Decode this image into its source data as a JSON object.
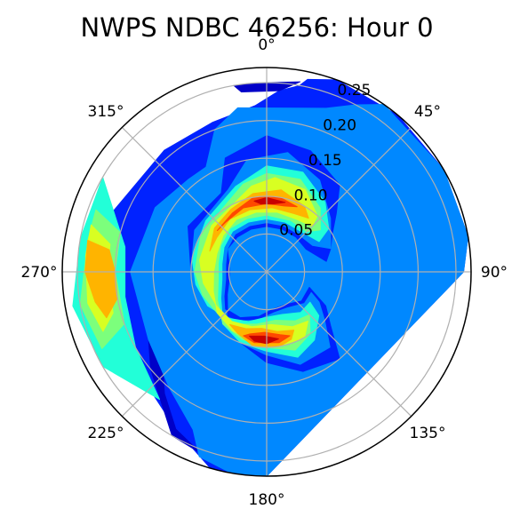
{
  "chart_data": {
    "type": "polar-contour",
    "title": "NWPS NDBC 46256: Hour 0",
    "theta_direction": "clockwise",
    "theta_zero": "top",
    "theta_ticks": [
      0,
      45,
      90,
      135,
      180,
      225,
      270,
      315
    ],
    "theta_tick_labels": [
      "0°",
      "45°",
      "90°",
      "135°",
      "180°",
      "225°",
      "270°",
      "315°"
    ],
    "r_ticks": [
      0.05,
      0.1,
      0.15,
      0.2,
      0.25
    ],
    "r_tick_labels": [
      "0.05",
      "0.10",
      "0.15",
      "0.20",
      "0.25"
    ],
    "r_tick_label_angle_deg": 22.5,
    "rlim": [
      0,
      0.27
    ],
    "grid": true,
    "colormap": "jet",
    "levels": [
      {
        "level": 1,
        "color": "#0000c8"
      },
      {
        "level": 2,
        "color": "#0022ff"
      },
      {
        "level": 3,
        "color": "#0088ff"
      },
      {
        "level": 4,
        "color": "#22ffd8"
      },
      {
        "level": 5,
        "color": "#7cff7c"
      },
      {
        "level": 6,
        "color": "#d8ff22"
      },
      {
        "level": 7,
        "color": "#ffb400"
      },
      {
        "level": 8,
        "color": "#ff4800"
      },
      {
        "level": 9,
        "color": "#c80000"
      }
    ],
    "contour_regions": [
      {
        "level": 2,
        "polar_points": [
          [
            90,
            0.26
          ],
          [
            80,
            0.27
          ],
          [
            60,
            0.27
          ],
          [
            40,
            0.27
          ],
          [
            20,
            0.27
          ],
          [
            12,
            0.26
          ],
          [
            10,
            0.25
          ],
          [
            4,
            0.24
          ],
          [
            -4,
            0.22
          ],
          [
            -20,
            0.21
          ],
          [
            -40,
            0.21
          ],
          [
            -70,
            0.22
          ],
          [
            -110,
            0.22
          ],
          [
            -150,
            0.24
          ],
          [
            -164,
            0.27
          ],
          [
            -172,
            0.27
          ],
          [
            -180,
            0.27
          ]
        ]
      },
      {
        "level": 1,
        "polar_points": [
          [
            10,
            0.255
          ],
          [
            0,
            0.25
          ],
          [
            -10,
            0.25
          ],
          [
            -8,
            0.24
          ],
          [
            4,
            0.24
          ]
        ]
      },
      {
        "level": 1,
        "polar_points": [
          [
            -140,
            0.21
          ],
          [
            -150,
            0.24
          ],
          [
            -160,
            0.255
          ],
          [
            -150,
            0.25
          ],
          [
            -130,
            0.2
          ],
          [
            -120,
            0.18
          ],
          [
            -130,
            0.18
          ]
        ]
      },
      {
        "level": 3,
        "polar_points": [
          [
            90,
            0.26
          ],
          [
            80,
            0.27
          ],
          [
            60,
            0.27
          ],
          [
            35,
            0.27
          ],
          [
            28,
            0.25
          ],
          [
            20,
            0.23
          ],
          [
            -10,
            0.22
          ],
          [
            -20,
            0.2
          ],
          [
            -30,
            0.16
          ],
          [
            -40,
            0.16
          ],
          [
            -60,
            0.17
          ],
          [
            -90,
            0.18
          ],
          [
            -120,
            0.18
          ],
          [
            -140,
            0.2
          ],
          [
            -155,
            0.23
          ],
          [
            -160,
            0.26
          ],
          [
            -170,
            0.27
          ],
          [
            -180,
            0.27
          ]
        ]
      },
      {
        "level": 4,
        "polar_points": [
          [
            -60,
            0.25
          ],
          [
            -80,
            0.25
          ],
          [
            -100,
            0.26
          ],
          [
            -120,
            0.25
          ],
          [
            -140,
            0.22
          ],
          [
            -120,
            0.2
          ],
          [
            -100,
            0.19
          ],
          [
            -80,
            0.19
          ]
        ]
      },
      {
        "level": 5,
        "polar_points": [
          [
            -70,
            0.24
          ],
          [
            -80,
            0.24
          ],
          [
            -100,
            0.25
          ],
          [
            -115,
            0.24
          ],
          [
            -110,
            0.2
          ],
          [
            -90,
            0.2
          ],
          [
            -75,
            0.2
          ]
        ]
      },
      {
        "level": 6,
        "polar_points": [
          [
            -75,
            0.24
          ],
          [
            -85,
            0.24
          ],
          [
            -100,
            0.24
          ],
          [
            -110,
            0.23
          ],
          [
            -105,
            0.21
          ],
          [
            -90,
            0.21
          ],
          [
            -80,
            0.21
          ]
        ]
      },
      {
        "level": 7,
        "polar_points": [
          [
            -80,
            0.24
          ],
          [
            -90,
            0.24
          ],
          [
            -100,
            0.23
          ],
          [
            -106,
            0.22
          ],
          [
            -100,
            0.2
          ],
          [
            -90,
            0.2
          ],
          [
            -82,
            0.21
          ]
        ]
      },
      {
        "level": 2,
        "polar_points": [
          [
            -30,
            0.12
          ],
          [
            -20,
            0.16
          ],
          [
            0,
            0.18
          ],
          [
            20,
            0.17
          ],
          [
            40,
            0.15
          ],
          [
            50,
            0.12
          ],
          [
            60,
            0.1
          ],
          [
            70,
            0.09
          ],
          [
            80,
            0.08
          ],
          [
            60,
            0.06
          ],
          [
            40,
            0.06
          ],
          [
            20,
            0.06
          ],
          [
            0,
            0.06
          ],
          [
            -20,
            0.06
          ],
          [
            -40,
            0.06
          ],
          [
            -60,
            0.06
          ],
          [
            -80,
            0.05
          ],
          [
            -100,
            0.05
          ],
          [
            -120,
            0.06
          ],
          [
            -140,
            0.08
          ],
          [
            -160,
            0.1
          ],
          [
            -180,
            0.12
          ],
          [
            160,
            0.14
          ],
          [
            140,
            0.15
          ],
          [
            130,
            0.11
          ],
          [
            120,
            0.09
          ],
          [
            110,
            0.06
          ],
          [
            130,
            0.06
          ],
          [
            150,
            0.05
          ],
          [
            170,
            0.05
          ],
          [
            -170,
            0.06
          ],
          [
            -150,
            0.07
          ],
          [
            -120,
            0.08
          ],
          [
            -100,
            0.09
          ],
          [
            -90,
            0.1
          ],
          [
            -60,
            0.12
          ]
        ]
      },
      {
        "level": 3,
        "polar_points": [
          [
            -25,
            0.12
          ],
          [
            -10,
            0.15
          ],
          [
            10,
            0.16
          ],
          [
            30,
            0.14
          ],
          [
            50,
            0.11
          ],
          [
            70,
            0.09
          ],
          [
            60,
            0.07
          ],
          [
            40,
            0.065
          ],
          [
            20,
            0.065
          ],
          [
            0,
            0.065
          ],
          [
            -20,
            0.065
          ],
          [
            -40,
            0.065
          ],
          [
            -60,
            0.06
          ],
          [
            -80,
            0.055
          ],
          [
            -100,
            0.055
          ],
          [
            -120,
            0.065
          ],
          [
            -140,
            0.085
          ],
          [
            -160,
            0.1
          ],
          [
            -180,
            0.11
          ],
          [
            160,
            0.13
          ],
          [
            140,
            0.13
          ],
          [
            130,
            0.1
          ],
          [
            120,
            0.08
          ],
          [
            115,
            0.065
          ],
          [
            130,
            0.065
          ],
          [
            150,
            0.055
          ],
          [
            170,
            0.055
          ],
          [
            -170,
            0.065
          ],
          [
            -150,
            0.075
          ],
          [
            -130,
            0.085
          ],
          [
            -110,
            0.09
          ],
          [
            -90,
            0.1
          ],
          [
            -60,
            0.11
          ]
        ]
      },
      {
        "level": 4,
        "polar_points": [
          [
            -20,
            0.12
          ],
          [
            0,
            0.14
          ],
          [
            20,
            0.14
          ],
          [
            40,
            0.12
          ],
          [
            55,
            0.1
          ],
          [
            60,
            0.08
          ],
          [
            40,
            0.07
          ],
          [
            20,
            0.07
          ],
          [
            0,
            0.07
          ],
          [
            -20,
            0.07
          ],
          [
            -40,
            0.07
          ],
          [
            -60,
            0.065
          ],
          [
            -80,
            0.06
          ],
          [
            -100,
            0.06
          ],
          [
            -120,
            0.07
          ],
          [
            -140,
            0.09
          ],
          [
            -160,
            0.1
          ],
          [
            -180,
            0.105
          ],
          [
            160,
            0.12
          ],
          [
            145,
            0.11
          ],
          [
            130,
            0.09
          ],
          [
            125,
            0.07
          ],
          [
            140,
            0.07
          ],
          [
            160,
            0.06
          ],
          [
            180,
            0.06
          ],
          [
            -160,
            0.07
          ],
          [
            -140,
            0.08
          ],
          [
            -120,
            0.09
          ],
          [
            -100,
            0.095
          ],
          [
            -80,
            0.1
          ],
          [
            -50,
            0.105
          ]
        ]
      },
      {
        "level": 5,
        "polar_points": [
          [
            -15,
            0.12
          ],
          [
            0,
            0.13
          ],
          [
            20,
            0.13
          ],
          [
            40,
            0.11
          ],
          [
            52,
            0.09
          ],
          [
            45,
            0.075
          ],
          [
            25,
            0.075
          ],
          [
            0,
            0.075
          ],
          [
            -20,
            0.075
          ],
          [
            -40,
            0.075
          ],
          [
            -60,
            0.07
          ],
          [
            -80,
            0.065
          ],
          [
            -100,
            0.065
          ],
          [
            -120,
            0.075
          ],
          [
            -140,
            0.09
          ],
          [
            -160,
            0.095
          ],
          [
            -180,
            0.1
          ],
          [
            160,
            0.11
          ],
          [
            145,
            0.1
          ],
          [
            135,
            0.08
          ],
          [
            150,
            0.075
          ],
          [
            170,
            0.065
          ],
          [
            -170,
            0.07
          ],
          [
            -150,
            0.08
          ],
          [
            -130,
            0.085
          ],
          [
            -110,
            0.09
          ],
          [
            -90,
            0.095
          ],
          [
            -60,
            0.1
          ]
        ]
      },
      {
        "level": 6,
        "polar_points": [
          [
            -10,
            0.115
          ],
          [
            5,
            0.125
          ],
          [
            25,
            0.12
          ],
          [
            42,
            0.1
          ],
          [
            45,
            0.085
          ],
          [
            30,
            0.08
          ],
          [
            10,
            0.08
          ],
          [
            -10,
            0.08
          ],
          [
            -30,
            0.08
          ],
          [
            -50,
            0.075
          ],
          [
            -70,
            0.07
          ],
          [
            -90,
            0.07
          ],
          [
            -110,
            0.075
          ],
          [
            -130,
            0.085
          ],
          [
            -150,
            0.09
          ],
          [
            -170,
            0.095
          ],
          [
            170,
            0.1
          ],
          [
            150,
            0.1
          ],
          [
            140,
            0.085
          ],
          [
            155,
            0.08
          ],
          [
            175,
            0.07
          ],
          [
            -165,
            0.075
          ],
          [
            -145,
            0.08
          ],
          [
            -125,
            0.08
          ],
          [
            -100,
            0.085
          ],
          [
            -80,
            0.09
          ],
          [
            -50,
            0.095
          ]
        ]
      },
      {
        "level": 7,
        "polar_points": [
          [
            -30,
            0.095
          ],
          [
            -10,
            0.105
          ],
          [
            10,
            0.11
          ],
          [
            30,
            0.1
          ],
          [
            38,
            0.09
          ],
          [
            25,
            0.085
          ],
          [
            5,
            0.085
          ],
          [
            -15,
            0.085
          ],
          [
            -35,
            0.085
          ],
          [
            -55,
            0.08
          ],
          [
            -70,
            0.08
          ],
          [
            -50,
            0.09
          ]
        ]
      },
      {
        "level": 7,
        "polar_points": [
          [
            160,
            0.095
          ],
          [
            170,
            0.1
          ],
          [
            -170,
            0.1
          ],
          [
            -155,
            0.09
          ],
          [
            -145,
            0.085
          ],
          [
            -160,
            0.08
          ],
          [
            -175,
            0.075
          ],
          [
            170,
            0.08
          ],
          [
            155,
            0.085
          ]
        ]
      },
      {
        "level": 8,
        "polar_points": [
          [
            -30,
            0.09
          ],
          [
            -10,
            0.1
          ],
          [
            10,
            0.1
          ],
          [
            25,
            0.095
          ],
          [
            15,
            0.09
          ],
          [
            0,
            0.09
          ],
          [
            -20,
            0.09
          ],
          [
            -40,
            0.085
          ],
          [
            -50,
            0.085
          ]
        ]
      },
      {
        "level": 8,
        "polar_points": [
          [
            160,
            0.09
          ],
          [
            170,
            0.095
          ],
          [
            -170,
            0.095
          ],
          [
            -160,
            0.09
          ],
          [
            -165,
            0.085
          ],
          [
            -178,
            0.08
          ],
          [
            168,
            0.085
          ]
        ]
      },
      {
        "level": 9,
        "polar_points": [
          [
            -10,
            0.095
          ],
          [
            0,
            0.098
          ],
          [
            15,
            0.095
          ],
          [
            5,
            0.09
          ],
          [
            -5,
            0.09
          ]
        ]
      },
      {
        "level": 9,
        "polar_points": [
          [
            170,
            0.09
          ],
          [
            180,
            0.095
          ],
          [
            -170,
            0.093
          ],
          [
            -165,
            0.088
          ],
          [
            -178,
            0.085
          ]
        ]
      }
    ]
  }
}
